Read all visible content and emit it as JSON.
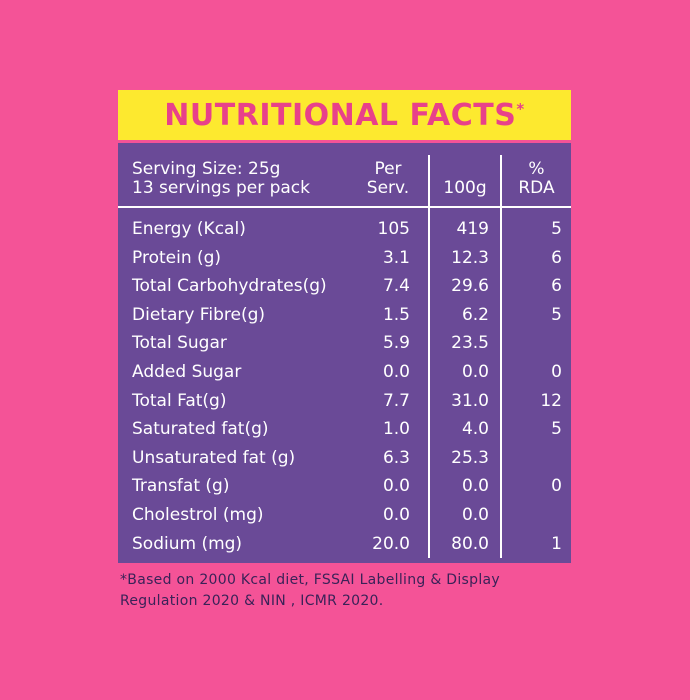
{
  "header": {
    "title": "NUTRITIONAL FACTS",
    "asterisk": "*"
  },
  "table": {
    "serving_line1": "Serving Size: 25g",
    "serving_line2": "13 servings per pack",
    "col_per_line1": "Per",
    "col_per_line2": "Serv.",
    "col_100g": "100g",
    "col_rda_line1": "%",
    "col_rda_line2": "RDA",
    "rows": [
      {
        "name": "Energy (Kcal)",
        "per": "105",
        "g100": "419",
        "rda": "5"
      },
      {
        "name": "Protein (g)",
        "per": "3.1",
        "g100": "12.3",
        "rda": "6"
      },
      {
        "name": "Total Carbohydrates(g)",
        "per": "7.4",
        "g100": "29.6",
        "rda": "6"
      },
      {
        "name": "Dietary Fibre(g)",
        "per": "1.5",
        "g100": "6.2",
        "rda": "5"
      },
      {
        "name": "Total Sugar",
        "per": "5.9",
        "g100": "23.5",
        "rda": ""
      },
      {
        "name": "Added Sugar",
        "per": "0.0",
        "g100": "0.0",
        "rda": "0"
      },
      {
        "name": "Total Fat(g)",
        "per": "7.7",
        "g100": "31.0",
        "rda": "12"
      },
      {
        "name": "Saturated fat(g)",
        "per": "1.0",
        "g100": "4.0",
        "rda": "5"
      },
      {
        "name": "Unsaturated fat (g)",
        "per": "6.3",
        "g100": "25.3",
        "rda": ""
      },
      {
        "name": "Transfat (g)",
        "per": "0.0",
        "g100": "0.0",
        "rda": "0"
      },
      {
        "name": "Cholestrol (mg)",
        "per": "0.0",
        "g100": "0.0",
        "rda": ""
      },
      {
        "name": "Sodium (mg)",
        "per": "20.0",
        "g100": "80.0",
        "rda": "1"
      }
    ]
  },
  "footnote": {
    "line1": "*Based on 2000 Kcal diet, FSSAI Labelling & Display",
    "line2": "Regulation 2020 & NIN , ICMR 2020."
  },
  "colors": {
    "background": "#f45397",
    "banner": "#fde92f",
    "title": "#e8418a",
    "panel": "#6a4a97",
    "text": "#ffffff"
  }
}
